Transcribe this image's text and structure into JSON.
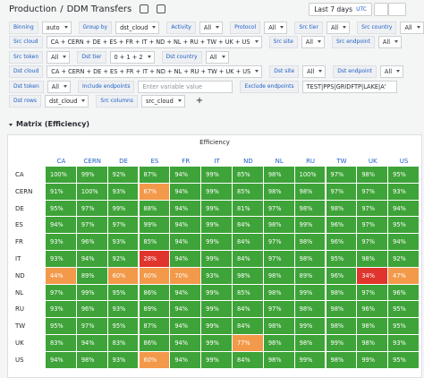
{
  "breadcrumb": {
    "folder": "Production",
    "separator": "/",
    "title": "DDM Transfers"
  },
  "time_picker": {
    "range": "Last 7 days",
    "zone": "UTC"
  },
  "variables": [
    [
      {
        "label": "Binning",
        "value": "auto"
      },
      {
        "label": "Group by",
        "value": "dst_cloud"
      },
      {
        "label": "Activity",
        "value": "All"
      },
      {
        "label": "Protocol",
        "value": "All"
      },
      {
        "label": "Src tier",
        "value": "All"
      },
      {
        "label": "Src country",
        "value": "All"
      }
    ],
    [
      {
        "label": "Src cloud",
        "value": "CA + CERN + DE + ES + FR + IT + ND + NL + RU + TW + UK + US"
      },
      {
        "label": "Src site",
        "value": "All"
      },
      {
        "label": "Src endpoint",
        "value": "All"
      }
    ],
    [
      {
        "label": "Src token",
        "value": "All"
      },
      {
        "label": "Dst tier",
        "value": "0 + 1 + 2"
      },
      {
        "label": "Dst country",
        "value": "All"
      }
    ],
    [
      {
        "label": "Dst cloud",
        "value": "CA + CERN + DE + ES + FR + IT + ND + NL + RU + TW + UK + US"
      },
      {
        "label": "Dst site",
        "value": "All"
      },
      {
        "label": "Dst endpoint",
        "value": "All"
      }
    ],
    [
      {
        "label": "Dst token",
        "value": "All"
      },
      {
        "label": "Include endpoints",
        "placeholder": "Enter variable value"
      },
      {
        "label": "Exclude endpoints",
        "text": "TEST|PPS|GRIDFTP|LAKE|A'"
      }
    ],
    [
      {
        "label": "Dst rows",
        "value": "dst_cloud"
      },
      {
        "label": "Src columns",
        "value": "src_cloud"
      }
    ]
  ],
  "add_button": "+",
  "panel": {
    "title": "Matrix (Efficiency)",
    "table_title": "Efficiency",
    "columns": [
      "CA",
      "CERN",
      "DE",
      "ES",
      "FR",
      "IT",
      "ND",
      "NL",
      "RU",
      "TW",
      "UK",
      "US"
    ],
    "rows": [
      {
        "name": "CA",
        "cells": [
          "100%",
          "99%",
          "92%",
          "87%",
          "94%",
          "99%",
          "85%",
          "98%",
          "100%",
          "97%",
          "98%",
          "95%"
        ]
      },
      {
        "name": "CERN",
        "cells": [
          "91%",
          "100%",
          "93%",
          "67%",
          "94%",
          "99%",
          "85%",
          "98%",
          "98%",
          "97%",
          "97%",
          "93%"
        ]
      },
      {
        "name": "DE",
        "cells": [
          "95%",
          "97%",
          "99%",
          "88%",
          "94%",
          "99%",
          "81%",
          "97%",
          "98%",
          "98%",
          "97%",
          "94%"
        ]
      },
      {
        "name": "ES",
        "cells": [
          "94%",
          "97%",
          "97%",
          "99%",
          "94%",
          "99%",
          "84%",
          "98%",
          "99%",
          "96%",
          "97%",
          "95%"
        ]
      },
      {
        "name": "FR",
        "cells": [
          "93%",
          "96%",
          "93%",
          "85%",
          "94%",
          "99%",
          "84%",
          "97%",
          "98%",
          "96%",
          "97%",
          "94%"
        ]
      },
      {
        "name": "IT",
        "cells": [
          "93%",
          "94%",
          "92%",
          "28%",
          "94%",
          "99%",
          "84%",
          "97%",
          "98%",
          "95%",
          "98%",
          "92%"
        ]
      },
      {
        "name": "ND",
        "cells": [
          "44%",
          "89%",
          "60%",
          "60%",
          "70%",
          "93%",
          "98%",
          "98%",
          "89%",
          "96%",
          "34%",
          "47%"
        ]
      },
      {
        "name": "NL",
        "cells": [
          "97%",
          "99%",
          "95%",
          "86%",
          "94%",
          "99%",
          "85%",
          "98%",
          "99%",
          "98%",
          "97%",
          "96%"
        ]
      },
      {
        "name": "RU",
        "cells": [
          "93%",
          "96%",
          "93%",
          "89%",
          "94%",
          "99%",
          "84%",
          "97%",
          "98%",
          "98%",
          "96%",
          "95%"
        ]
      },
      {
        "name": "TW",
        "cells": [
          "95%",
          "97%",
          "95%",
          "87%",
          "94%",
          "99%",
          "84%",
          "98%",
          "99%",
          "98%",
          "98%",
          "95%"
        ]
      },
      {
        "name": "UK",
        "cells": [
          "83%",
          "94%",
          "83%",
          "86%",
          "94%",
          "99%",
          "77%",
          "98%",
          "98%",
          "99%",
          "98%",
          "93%"
        ]
      },
      {
        "name": "US",
        "cells": [
          "94%",
          "98%",
          "93%",
          "60%",
          "94%",
          "99%",
          "84%",
          "98%",
          "99%",
          "98%",
          "99%",
          "95%"
        ]
      }
    ],
    "color_scale": [
      {
        "min": 80,
        "color": "#3ea338"
      },
      {
        "min": 40,
        "color": "#f2994a"
      },
      {
        "min": 0,
        "color": "#e0352c"
      }
    ]
  }
}
